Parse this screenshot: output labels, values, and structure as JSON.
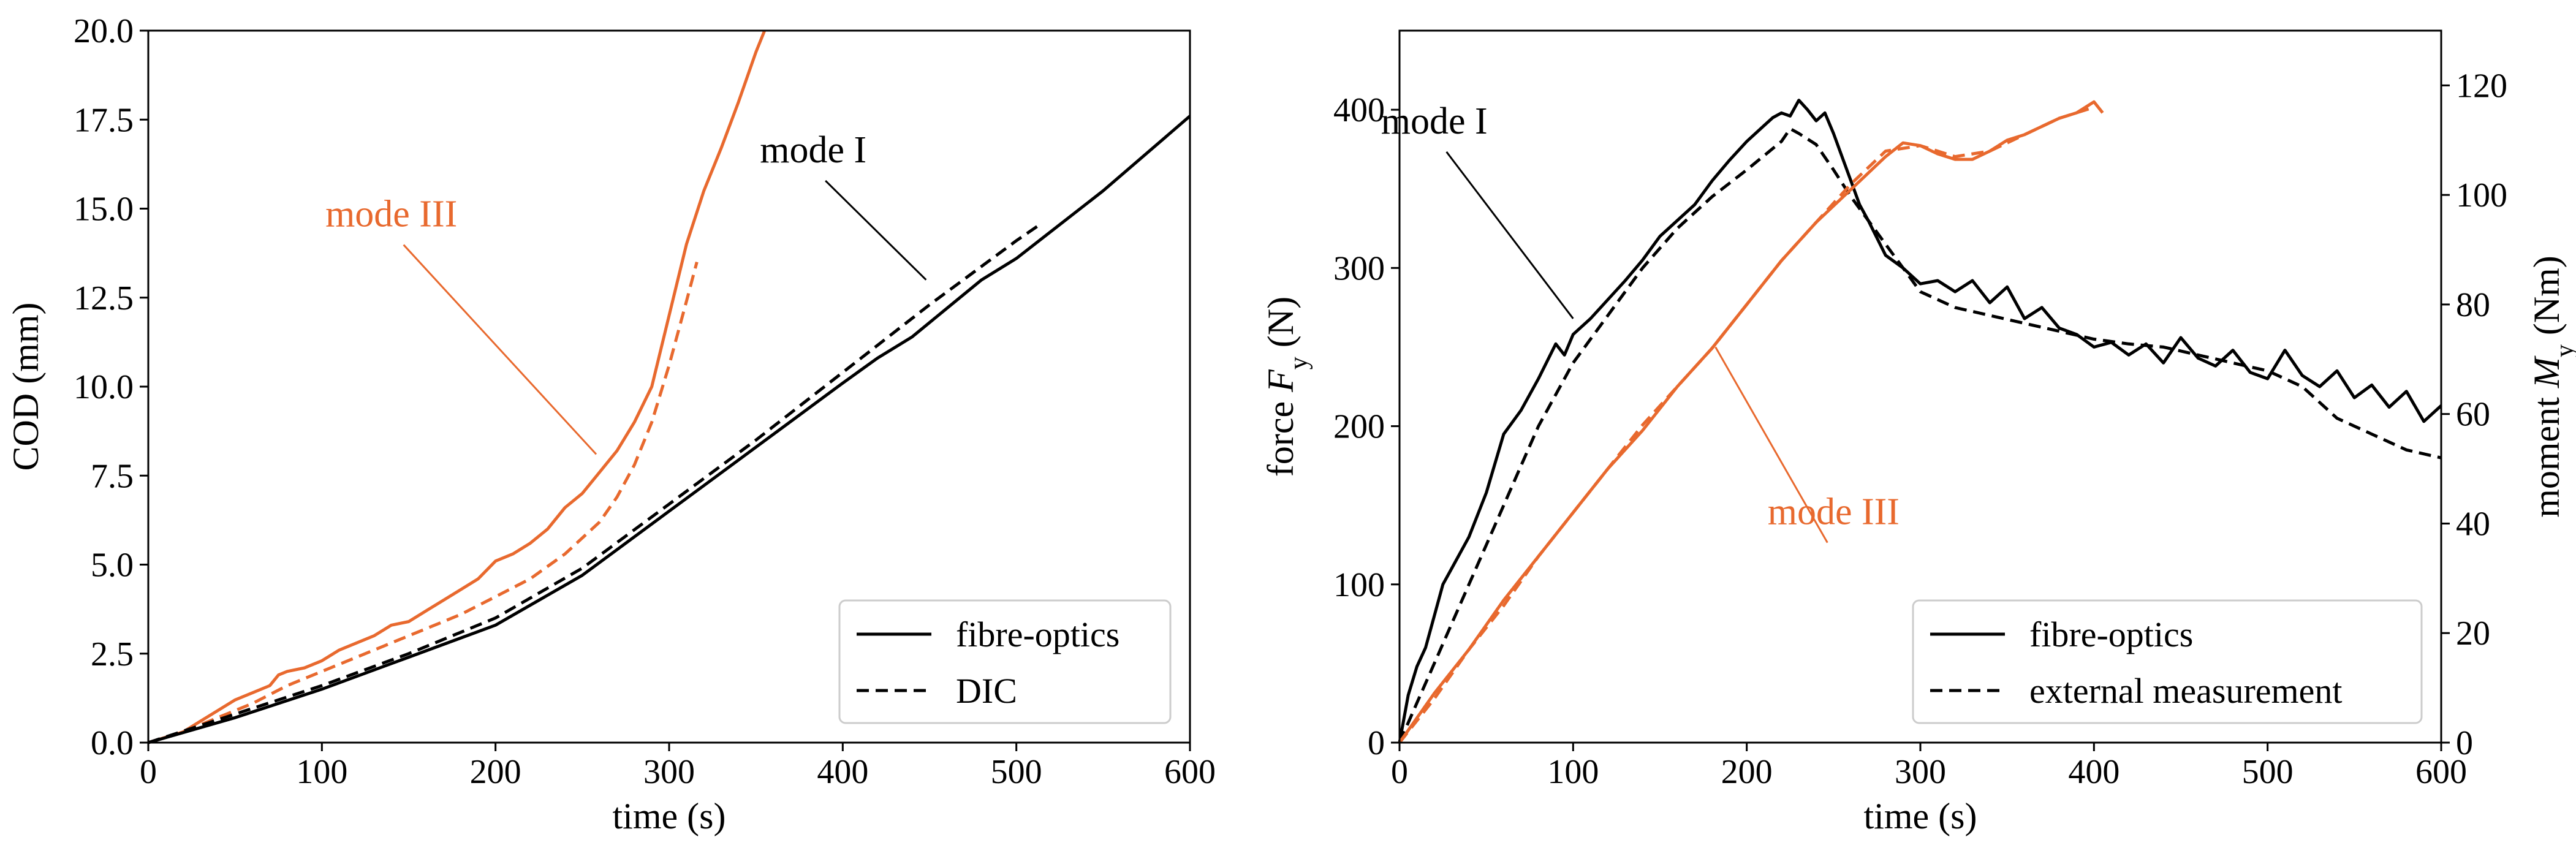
{
  "colors": {
    "mode_I": "#000000",
    "mode_III": "#e8692e"
  },
  "chart_data": [
    {
      "type": "line",
      "id": "left",
      "xlabel": "time (s)",
      "ylabel": "COD (mm)",
      "xlim": [
        0,
        600
      ],
      "ylim": [
        0,
        20
      ],
      "xticks": [
        0,
        100,
        200,
        300,
        400,
        500,
        600
      ],
      "xtick_labels": [
        "0",
        "100",
        "200",
        "300",
        "400",
        "500",
        "600"
      ],
      "yticks": [
        0,
        2.5,
        5,
        7.5,
        10,
        12.5,
        15,
        17.5,
        20
      ],
      "ytick_labels": [
        "0.0",
        "2.5",
        "5.0",
        "7.5",
        "10.0",
        "12.5",
        "15.0",
        "17.5",
        "20.0"
      ],
      "legend": {
        "position": "lower-right",
        "entries": [
          {
            "label": "fibre-optics",
            "style": "solid"
          },
          {
            "label": "DIC",
            "style": "dashed"
          }
        ]
      },
      "annotations": [
        {
          "text": "mode III",
          "color": "mode_III",
          "text_xy": [
            140,
            14.5
          ],
          "arrow_to": [
            258,
            8.1
          ]
        },
        {
          "text": "mode I",
          "color": "mode_I",
          "text_xy": [
            383,
            16.3
          ],
          "arrow_to": [
            448,
            13.0
          ]
        }
      ],
      "series": [
        {
          "name": "mode III fibre-optics",
          "color": "mode_III",
          "style": "solid",
          "x": [
            0,
            20,
            30,
            40,
            50,
            60,
            70,
            75,
            80,
            90,
            100,
            110,
            120,
            130,
            140,
            150,
            160,
            170,
            180,
            190,
            200,
            210,
            220,
            230,
            240,
            250,
            260,
            270,
            280,
            290,
            300,
            310,
            320,
            330,
            340,
            350,
            355
          ],
          "y": [
            0,
            0.3,
            0.6,
            0.9,
            1.2,
            1.4,
            1.6,
            1.9,
            2.0,
            2.1,
            2.3,
            2.6,
            2.8,
            3.0,
            3.3,
            3.4,
            3.7,
            4.0,
            4.3,
            4.6,
            5.1,
            5.3,
            5.6,
            6.0,
            6.6,
            7.0,
            7.6,
            8.2,
            9.0,
            10.0,
            12.0,
            14.0,
            15.5,
            16.7,
            18.0,
            19.4,
            20.0
          ]
        },
        {
          "name": "mode III DIC",
          "color": "mode_III",
          "style": "dashed",
          "x": [
            0,
            20,
            40,
            60,
            80,
            100,
            120,
            140,
            160,
            180,
            200,
            220,
            240,
            260,
            270,
            280,
            290,
            300,
            310,
            316
          ],
          "y": [
            0,
            0.3,
            0.7,
            1.1,
            1.6,
            2.0,
            2.4,
            2.8,
            3.2,
            3.6,
            4.1,
            4.6,
            5.3,
            6.2,
            6.9,
            7.8,
            9.0,
            10.6,
            12.4,
            13.5
          ]
        },
        {
          "name": "mode I fibre-optics",
          "color": "mode_I",
          "style": "solid",
          "x": [
            0,
            50,
            100,
            150,
            200,
            250,
            300,
            350,
            400,
            420,
            440,
            460,
            480,
            500,
            550,
            600
          ],
          "y": [
            0,
            0.7,
            1.5,
            2.4,
            3.3,
            4.7,
            6.5,
            8.3,
            10.1,
            10.8,
            11.4,
            12.2,
            13.0,
            13.6,
            15.5,
            17.6
          ]
        },
        {
          "name": "mode I DIC",
          "color": "mode_I",
          "style": "dashed",
          "x": [
            0,
            50,
            100,
            150,
            200,
            250,
            300,
            350,
            400,
            450,
            500,
            515
          ],
          "y": [
            0,
            0.8,
            1.6,
            2.5,
            3.5,
            4.9,
            6.7,
            8.5,
            10.4,
            12.3,
            14.1,
            14.6
          ]
        }
      ]
    },
    {
      "type": "line",
      "id": "right",
      "xlabel": "time (s)",
      "ylabel_left": "force F_y (N)",
      "ylabel_right": "moment M_y (Nm)",
      "xlim": [
        0,
        600
      ],
      "ylim_left": [
        0,
        450
      ],
      "ylim_right": [
        0,
        130
      ],
      "xticks": [
        0,
        100,
        200,
        300,
        400,
        500,
        600
      ],
      "xtick_labels": [
        "0",
        "100",
        "200",
        "300",
        "400",
        "500",
        "600"
      ],
      "yticks_left": [
        0,
        100,
        200,
        300,
        400
      ],
      "ytick_labels_left": [
        "0",
        "100",
        "200",
        "300",
        "400"
      ],
      "yticks_right": [
        0,
        20,
        40,
        60,
        80,
        100,
        120
      ],
      "ytick_labels_right": [
        "0",
        "20",
        "40",
        "60",
        "80",
        "100",
        "120"
      ],
      "legend": {
        "position": "lower-right",
        "entries": [
          {
            "label": "fibre-optics",
            "style": "solid"
          },
          {
            "label": "external measurement",
            "style": "dashed"
          }
        ]
      },
      "annotations": [
        {
          "text": "mode I",
          "color": "mode_I",
          "text_xy": [
            20,
            385
          ],
          "arrow_to": [
            100,
            268
          ]
        },
        {
          "text": "mode III",
          "color": "mode_III",
          "text_xy": [
            250,
            138
          ],
          "arrow_to": [
            182,
            250
          ]
        }
      ],
      "series": [
        {
          "name": "mode I force fibre-optics",
          "color": "mode_I",
          "style": "solid",
          "axis": "left",
          "x": [
            0,
            5,
            10,
            15,
            20,
            25,
            30,
            40,
            50,
            60,
            70,
            80,
            90,
            95,
            100,
            110,
            120,
            130,
            140,
            150,
            160,
            170,
            180,
            190,
            200,
            210,
            215,
            220,
            225,
            230,
            235,
            240,
            245,
            250,
            255,
            260,
            265,
            270,
            280,
            290,
            300,
            310,
            320,
            330,
            340,
            350,
            360,
            370,
            380,
            390,
            400,
            410,
            420,
            430,
            440,
            450,
            460,
            470,
            480,
            490,
            500,
            510,
            520,
            530,
            540,
            550,
            560,
            570,
            580,
            590,
            600
          ],
          "y": [
            0,
            30,
            48,
            60,
            80,
            100,
            110,
            130,
            158,
            195,
            210,
            230,
            252,
            245,
            258,
            268,
            280,
            292,
            305,
            320,
            330,
            340,
            355,
            368,
            380,
            390,
            395,
            398,
            396,
            406,
            400,
            393,
            398,
            385,
            370,
            355,
            340,
            330,
            308,
            300,
            290,
            292,
            285,
            292,
            278,
            288,
            268,
            275,
            262,
            258,
            250,
            253,
            245,
            252,
            240,
            256,
            243,
            238,
            248,
            234,
            230,
            248,
            232,
            225,
            235,
            218,
            226,
            212,
            222,
            203,
            213
          ]
        },
        {
          "name": "mode I force external",
          "color": "mode_I",
          "style": "dashed",
          "axis": "left",
          "x": [
            0,
            10,
            20,
            30,
            40,
            50,
            60,
            70,
            80,
            90,
            100,
            120,
            140,
            160,
            180,
            200,
            220,
            225,
            230,
            240,
            250,
            260,
            270,
            280,
            290,
            300,
            320,
            340,
            360,
            380,
            400,
            420,
            440,
            460,
            480,
            500,
            520,
            540,
            560,
            580,
            600
          ],
          "y": [
            0,
            25,
            50,
            75,
            100,
            125,
            150,
            175,
            200,
            220,
            240,
            270,
            300,
            325,
            345,
            362,
            380,
            388,
            385,
            378,
            362,
            345,
            330,
            315,
            300,
            285,
            275,
            270,
            265,
            260,
            255,
            252,
            250,
            245,
            240,
            235,
            225,
            205,
            195,
            185,
            180
          ]
        },
        {
          "name": "mode III moment fibre-optics",
          "color": "mode_III",
          "style": "solid",
          "axis": "right",
          "x": [
            0,
            20,
            40,
            60,
            80,
            100,
            120,
            140,
            160,
            180,
            200,
            220,
            240,
            260,
            280,
            290,
            300,
            310,
            320,
            330,
            340,
            350,
            360,
            370,
            380,
            390,
            400,
            405
          ],
          "y": [
            0,
            9,
            17,
            26,
            34,
            42,
            50,
            57,
            65,
            72,
            80,
            88,
            95,
            101,
            107,
            109.5,
            109,
            107.5,
            106.5,
            106.5,
            108,
            110,
            111,
            112.5,
            114,
            115,
            117,
            115
          ]
        },
        {
          "name": "mode III moment external",
          "color": "mode_III",
          "style": "dashed",
          "axis": "right",
          "x": [
            0,
            20,
            40,
            60,
            80,
            100,
            120,
            140,
            160,
            180,
            200,
            220,
            240,
            260,
            280,
            300,
            320,
            340,
            360,
            380,
            400
          ],
          "y": [
            0,
            8,
            17,
            25,
            34,
            42,
            50,
            58,
            65,
            72,
            80,
            88,
            95,
            102,
            108,
            109,
            107,
            108,
            111,
            114,
            116
          ]
        }
      ]
    }
  ]
}
